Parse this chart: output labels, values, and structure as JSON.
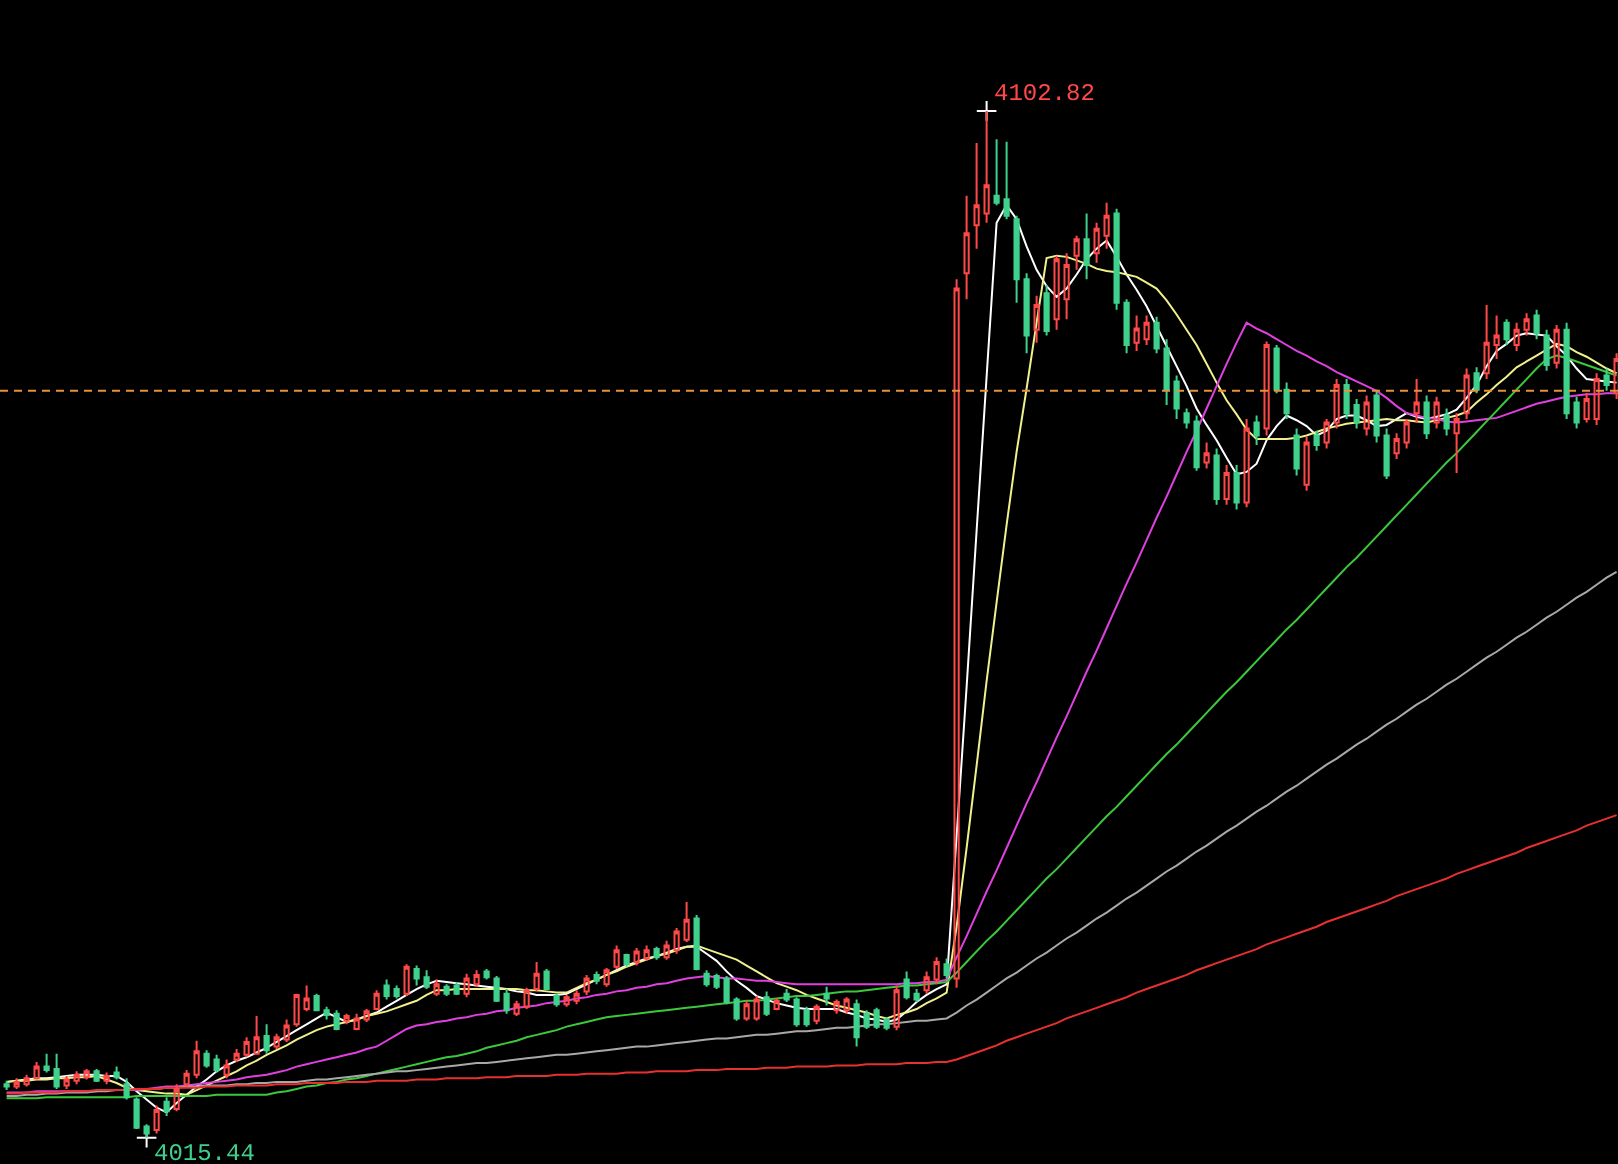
{
  "chart_data": {
    "type": "candlestick",
    "categories": [
      null,
      null,
      null,
      null,
      null,
      null,
      null,
      null,
      null,
      null,
      null,
      null,
      null,
      null,
      null,
      null,
      null,
      null,
      null,
      null,
      null,
      null,
      null,
      null,
      null,
      null,
      null,
      null,
      null,
      null,
      null,
      null,
      null,
      null,
      null,
      null,
      null,
      null,
      null,
      null,
      null,
      null,
      null,
      null,
      null,
      null,
      null,
      null,
      null,
      null,
      null,
      null,
      null,
      null,
      null,
      null,
      null,
      null,
      null,
      null,
      null,
      null,
      null,
      null,
      null,
      null,
      null,
      null,
      null,
      null,
      null,
      null,
      null,
      null,
      null,
      null,
      null,
      null,
      null,
      null,
      null,
      null,
      null,
      null,
      null,
      null,
      null,
      null,
      null,
      null,
      null,
      null,
      null,
      null,
      null,
      null,
      null,
      null,
      null,
      null,
      null,
      null,
      null,
      null,
      null,
      null,
      null,
      null,
      null,
      null,
      null,
      null,
      null,
      null,
      null,
      null,
      null,
      null,
      null,
      null,
      null,
      null,
      null,
      null,
      null,
      null,
      null,
      null,
      null,
      null,
      null,
      null,
      null,
      null,
      null,
      null,
      null,
      null,
      null,
      null,
      null,
      null,
      null,
      null,
      null,
      null,
      null,
      null,
      null,
      null,
      null,
      null,
      null,
      null,
      null,
      null,
      null,
      null,
      null,
      null,
      null,
      null
    ],
    "ohlc": [
      [
        4020.0,
        4020.3,
        4019.5,
        4019.8
      ],
      [
        4019.8,
        4020.5,
        4019.6,
        4020.2
      ],
      [
        4020.0,
        4020.8,
        4019.8,
        4020.5
      ],
      [
        4020.5,
        4021.9,
        4020.4,
        4021.5
      ],
      [
        4021.5,
        4022.6,
        4021.0,
        4021.2
      ],
      [
        4021.3,
        4022.6,
        4019.6,
        4019.8
      ],
      [
        4019.9,
        4020.7,
        4019.6,
        4020.4
      ],
      [
        4020.3,
        4021.1,
        4020.0,
        4020.8
      ],
      [
        4020.6,
        4021.3,
        4020.4,
        4021.1
      ],
      [
        4021.1,
        4021.3,
        4020.2,
        4020.3
      ],
      [
        4020.3,
        4021.0,
        4020.0,
        4020.7
      ],
      [
        4021.0,
        4021.5,
        4020.4,
        4020.6
      ],
      [
        4020.0,
        4020.5,
        4018.7,
        4018.9
      ],
      [
        4018.7,
        4018.9,
        4016.2,
        4016.3
      ],
      [
        4016.4,
        4016.6,
        4015.44,
        4015.8
      ],
      [
        4016.1,
        4018.2,
        4015.8,
        4017.8
      ],
      [
        4018.5,
        4018.9,
        4017.3,
        4017.7
      ],
      [
        4017.9,
        4020.0,
        4017.7,
        4019.6
      ],
      [
        4020.0,
        4021.2,
        4019.8,
        4020.9
      ],
      [
        4020.8,
        4023.7,
        4020.5,
        4022.8
      ],
      [
        4022.6,
        4022.9,
        4021.4,
        4021.6
      ],
      [
        4022.1,
        4022.5,
        4021.0,
        4021.2
      ],
      [
        4020.8,
        4022.1,
        4020.5,
        4021.6
      ],
      [
        4022.1,
        4023.0,
        4021.9,
        4022.6
      ],
      [
        4022.5,
        4024.0,
        4022.3,
        4023.6
      ],
      [
        4022.6,
        4025.8,
        4022.5,
        4024.0
      ],
      [
        4024.1,
        4025.1,
        4022.6,
        4022.9
      ],
      [
        4023.2,
        4024.3,
        4023.0,
        4024.0
      ],
      [
        4023.8,
        4025.5,
        4023.6,
        4025.0
      ],
      [
        4025.1,
        4027.7,
        4024.9,
        4027.6
      ],
      [
        4026.4,
        4028.4,
        4026.2,
        4027.3
      ],
      [
        4027.5,
        4027.7,
        4026.2,
        4026.3
      ],
      [
        4026.3,
        4026.6,
        4025.5,
        4025.9
      ],
      [
        4026.0,
        4026.3,
        4024.6,
        4024.7
      ],
      [
        4025.4,
        4026.0,
        4025.1,
        4025.8
      ],
      [
        4024.7,
        4026.0,
        4024.6,
        4025.6
      ],
      [
        4025.5,
        4026.4,
        4025.3,
        4026.2
      ],
      [
        4026.4,
        4028.0,
        4026.3,
        4027.7
      ],
      [
        4028.4,
        4028.9,
        4027.2,
        4027.5
      ],
      [
        4028.1,
        4028.4,
        4027.3,
        4027.5
      ],
      [
        4027.7,
        4030.2,
        4027.5,
        4030.0
      ],
      [
        4029.8,
        4030.1,
        4028.4,
        4029.0
      ],
      [
        4029.1,
        4029.7,
        4028.1,
        4028.3
      ],
      [
        4027.7,
        4028.9,
        4027.5,
        4028.5
      ],
      [
        4028.3,
        4028.5,
        4027.5,
        4027.7
      ],
      [
        4028.4,
        4028.7,
        4027.6,
        4027.7
      ],
      [
        4027.7,
        4029.4,
        4027.4,
        4029.0
      ],
      [
        4028.5,
        4029.7,
        4028.3,
        4029.3
      ],
      [
        4029.6,
        4029.8,
        4028.9,
        4029.1
      ],
      [
        4029.0,
        4029.2,
        4027.0,
        4027.1
      ],
      [
        4027.7,
        4028.1,
        4026.0,
        4026.3
      ],
      [
        4026.0,
        4027.1,
        4025.8,
        4026.8
      ],
      [
        4026.6,
        4028.2,
        4026.4,
        4028.0
      ],
      [
        4028.1,
        4030.4,
        4027.9,
        4029.4
      ],
      [
        4029.6,
        4029.8,
        4028.0,
        4028.1
      ],
      [
        4027.5,
        4027.7,
        4026.6,
        4026.8
      ],
      [
        4026.8,
        4027.6,
        4026.6,
        4027.4
      ],
      [
        4027.1,
        4028.0,
        4026.8,
        4027.7
      ],
      [
        4027.9,
        4029.3,
        4027.6,
        4029.0
      ],
      [
        4029.3,
        4029.6,
        4028.5,
        4028.8
      ],
      [
        4028.5,
        4029.9,
        4028.3,
        4029.7
      ],
      [
        4030.0,
        4031.8,
        4029.8,
        4031.4
      ],
      [
        4031.0,
        4031.1,
        4030.0,
        4030.2
      ],
      [
        4030.4,
        4031.6,
        4030.1,
        4031.3
      ],
      [
        4030.7,
        4031.8,
        4030.5,
        4031.4
      ],
      [
        4031.5,
        4031.7,
        4030.6,
        4030.8
      ],
      [
        4030.8,
        4032.2,
        4030.6,
        4031.8
      ],
      [
        4031.4,
        4033.3,
        4031.1,
        4033.0
      ],
      [
        4032.3,
        4035.5,
        4032.1,
        4034.0
      ],
      [
        4034.1,
        4034.4,
        4029.7,
        4029.8
      ],
      [
        4029.4,
        4029.7,
        4028.3,
        4028.5
      ],
      [
        4029.2,
        4029.4,
        4028.1,
        4028.3
      ],
      [
        4029.0,
        4029.2,
        4026.8,
        4027.0
      ],
      [
        4027.2,
        4027.4,
        4025.4,
        4025.6
      ],
      [
        4025.6,
        4027.1,
        4025.4,
        4026.8
      ],
      [
        4025.6,
        4027.5,
        4025.4,
        4027.2
      ],
      [
        4027.4,
        4027.9,
        4025.8,
        4026.0
      ],
      [
        4026.4,
        4027.3,
        4026.3,
        4027.1
      ],
      [
        4027.7,
        4028.1,
        4027.0,
        4027.2
      ],
      [
        4027.2,
        4027.4,
        4024.9,
        4025.1
      ],
      [
        4026.3,
        4026.6,
        4024.9,
        4025.1
      ],
      [
        4025.4,
        4026.8,
        4025.1,
        4026.6
      ],
      [
        4027.7,
        4028.3,
        4026.7,
        4027.3
      ],
      [
        4026.3,
        4027.2,
        4026.0,
        4027.0
      ],
      [
        4026.3,
        4027.4,
        4026.0,
        4027.2
      ],
      [
        4026.8,
        4027.2,
        4023.2,
        4024.0
      ],
      [
        4026.0,
        4026.3,
        4024.7,
        4024.9
      ],
      [
        4026.3,
        4026.5,
        4024.7,
        4024.9
      ],
      [
        4025.5,
        4025.7,
        4024.6,
        4024.8
      ],
      [
        4024.9,
        4028.4,
        4024.6,
        4028.0
      ],
      [
        4028.9,
        4029.6,
        4027.2,
        4027.4
      ],
      [
        4027.7,
        4028.1,
        4027.0,
        4027.2
      ],
      [
        4028.0,
        4029.6,
        4027.7,
        4029.1
      ],
      [
        4028.9,
        4030.8,
        4028.5,
        4030.4
      ],
      [
        4030.2,
        4030.7,
        4029.0,
        4029.3
      ],
      [
        4029.0,
        4088.5,
        4028.2,
        4087.7
      ],
      [
        4089.0,
        4095.6,
        4086.8,
        4092.4
      ],
      [
        4093.1,
        4100.1,
        4091.1,
        4094.8
      ],
      [
        4094.1,
        4102.82,
        4093.3,
        4096.5
      ],
      [
        4095.6,
        4100.4,
        4094.8,
        4095.0
      ],
      [
        4095.3,
        4100.2,
        4093.6,
        4093.9
      ],
      [
        4093.6,
        4093.9,
        4086.5,
        4088.5
      ],
      [
        4088.5,
        4089.0,
        4082.2,
        4083.7
      ],
      [
        4084.2,
        4087.1,
        4083.1,
        4086.3
      ],
      [
        4087.3,
        4088.0,
        4083.7,
        4084.1
      ],
      [
        4085.1,
        4090.5,
        4084.2,
        4090.2
      ],
      [
        4086.8,
        4090.7,
        4085.1,
        4089.7
      ],
      [
        4090.5,
        4092.2,
        4089.3,
        4091.9
      ],
      [
        4091.9,
        4094.1,
        4088.5,
        4089.7
      ],
      [
        4090.7,
        4093.3,
        4089.9,
        4092.8
      ],
      [
        4092.2,
        4095.0,
        4091.1,
        4093.9
      ],
      [
        4094.1,
        4094.5,
        4085.9,
        4086.5
      ],
      [
        4086.5,
        4086.8,
        4082.2,
        4082.9
      ],
      [
        4083.1,
        4085.4,
        4082.4,
        4084.3
      ],
      [
        4083.4,
        4085.4,
        4082.9,
        4084.8
      ],
      [
        4084.8,
        4085.3,
        4082.2,
        4082.6
      ],
      [
        4082.6,
        4083.4,
        4077.8,
        4079.1
      ],
      [
        4079.8,
        4080.3,
        4076.6,
        4077.5
      ],
      [
        4077.1,
        4077.5,
        4075.8,
        4076.3
      ],
      [
        4076.4,
        4076.9,
        4072.2,
        4072.5
      ],
      [
        4072.9,
        4074.6,
        4072.4,
        4073.7
      ],
      [
        4073.5,
        4074.1,
        4069.3,
        4069.8
      ],
      [
        4069.8,
        4072.7,
        4069.3,
        4072.0
      ],
      [
        4072.0,
        4072.7,
        4068.9,
        4069.5
      ],
      [
        4069.5,
        4076.6,
        4069.1,
        4075.8
      ],
      [
        4076.3,
        4076.9,
        4074.4,
        4075.2
      ],
      [
        4075.8,
        4083.2,
        4075.2,
        4082.9
      ],
      [
        4082.6,
        4082.9,
        4078.8,
        4079.1
      ],
      [
        4079.1,
        4079.7,
        4076.6,
        4077.1
      ],
      [
        4075.2,
        4075.8,
        4071.8,
        4072.4
      ],
      [
        4071.0,
        4075.1,
        4070.5,
        4074.6
      ],
      [
        4075.2,
        4075.6,
        4073.9,
        4074.4
      ],
      [
        4074.6,
        4076.6,
        4074.1,
        4076.3
      ],
      [
        4076.3,
        4080.0,
        4075.8,
        4079.5
      ],
      [
        4079.5,
        4080.0,
        4076.6,
        4077.1
      ],
      [
        4077.8,
        4078.3,
        4075.8,
        4076.3
      ],
      [
        4075.8,
        4078.6,
        4075.2,
        4078.0
      ],
      [
        4078.6,
        4079.1,
        4074.6,
        4075.2
      ],
      [
        4075.2,
        4075.8,
        4071.5,
        4071.8
      ],
      [
        4073.7,
        4075.4,
        4073.2,
        4074.9
      ],
      [
        4074.6,
        4076.6,
        4074.1,
        4076.3
      ],
      [
        4077.1,
        4080.0,
        4076.3,
        4078.0
      ],
      [
        4078.0,
        4078.6,
        4074.9,
        4075.4
      ],
      [
        4076.3,
        4078.5,
        4075.8,
        4078.0
      ],
      [
        4076.9,
        4077.5,
        4075.2,
        4075.8
      ],
      [
        4075.4,
        4077.1,
        4072.0,
        4076.6
      ],
      [
        4077.1,
        4080.9,
        4076.6,
        4080.3
      ],
      [
        4080.5,
        4081.0,
        4078.8,
        4079.1
      ],
      [
        4080.5,
        4086.3,
        4080.0,
        4083.1
      ],
      [
        4082.9,
        4085.4,
        4081.7,
        4083.7
      ],
      [
        4084.8,
        4085.1,
        4082.9,
        4083.4
      ],
      [
        4082.9,
        4084.8,
        4082.4,
        4084.2
      ],
      [
        4084.2,
        4085.6,
        4083.7,
        4085.1
      ],
      [
        4085.4,
        4085.9,
        4083.4,
        4083.9
      ],
      [
        4083.7,
        4084.2,
        4080.7,
        4081.2
      ],
      [
        4081.4,
        4084.6,
        4080.9,
        4084.2
      ],
      [
        4084.2,
        4084.8,
        4076.6,
        4077.1
      ],
      [
        4078.0,
        4078.5,
        4075.8,
        4076.3
      ],
      [
        4076.6,
        4078.8,
        4076.3,
        4078.3
      ],
      [
        4076.6,
        4080.5,
        4076.1,
        4080.0
      ],
      [
        4080.3,
        4080.9,
        4079.0,
        4079.5
      ],
      [
        4078.8,
        4082.2,
        4078.3,
        4081.7
      ]
    ],
    "colors": [
      "#3fd08c",
      "#ff4848",
      "#ff4848",
      "#ff4848",
      "#3fd08c",
      "#3fd08c",
      "#ff4848",
      "#ff4848",
      "#ff4848",
      "#3fd08c",
      "#ff4848",
      "#3fd08c",
      "#3fd08c",
      "#3fd08c",
      "#3fd08c",
      "#ff4848",
      "#3fd08c",
      "#ff4848",
      "#ff4848",
      "#ff4848",
      "#3fd08c",
      "#3fd08c",
      "#ff4848",
      "#ff4848",
      "#ff4848",
      "#ff4848",
      "#3fd08c",
      "#ff4848",
      "#ff4848",
      "#ff4848",
      "#ff4848",
      "#3fd08c",
      "#3fd08c",
      "#3fd08c",
      "#ff4848",
      "#ff4848",
      "#ff4848",
      "#ff4848",
      "#3fd08c",
      "#3fd08c",
      "#ff4848",
      "#3fd08c",
      "#3fd08c",
      "#ff4848",
      "#3fd08c",
      "#3fd08c",
      "#ff4848",
      "#ff4848",
      "#3fd08c",
      "#3fd08c",
      "#3fd08c",
      "#ff4848",
      "#ff4848",
      "#ff4848",
      "#3fd08c",
      "#3fd08c",
      "#ff4848",
      "#ff4848",
      "#ff4848",
      "#3fd08c",
      "#ff4848",
      "#ff4848",
      "#3fd08c",
      "#ff4848",
      "#ff4848",
      "#3fd08c",
      "#ff4848",
      "#ff4848",
      "#ff4848",
      "#3fd08c",
      "#3fd08c",
      "#3fd08c",
      "#3fd08c",
      "#3fd08c",
      "#ff4848",
      "#ff4848",
      "#3fd08c",
      "#ff4848",
      "#3fd08c",
      "#3fd08c",
      "#3fd08c",
      "#ff4848",
      "#3fd08c",
      "#ff4848",
      "#ff4848",
      "#3fd08c",
      "#3fd08c",
      "#3fd08c",
      "#3fd08c",
      "#ff4848",
      "#3fd08c",
      "#3fd08c",
      "#ff4848",
      "#ff4848",
      "#3fd08c",
      "#ff4848",
      "#ff4848",
      "#ff4848",
      "#ff4848",
      "#3fd08c",
      "#3fd08c",
      "#3fd08c",
      "#3fd08c",
      "#ff4848",
      "#3fd08c",
      "#ff4848",
      "#ff4848",
      "#ff4848",
      "#3fd08c",
      "#ff4848",
      "#ff4848",
      "#3fd08c",
      "#3fd08c",
      "#ff4848",
      "#ff4848",
      "#3fd08c",
      "#3fd08c",
      "#3fd08c",
      "#3fd08c",
      "#3fd08c",
      "#ff4848",
      "#3fd08c",
      "#ff4848",
      "#3fd08c",
      "#ff4848",
      "#3fd08c",
      "#ff4848",
      "#3fd08c",
      "#3fd08c",
      "#3fd08c",
      "#ff4848",
      "#3fd08c",
      "#ff4848",
      "#ff4848",
      "#3fd08c",
      "#3fd08c",
      "#ff4848",
      "#3fd08c",
      "#3fd08c",
      "#ff4848",
      "#ff4848",
      "#ff4848",
      "#3fd08c",
      "#ff4848",
      "#3fd08c",
      "#ff4848",
      "#ff4848",
      "#3fd08c",
      "#ff4848",
      "#ff4848",
      "#3fd08c",
      "#ff4848",
      "#ff4848",
      "#3fd08c",
      "#3fd08c",
      "#ff4848",
      "#3fd08c",
      "#3fd08c",
      "#ff4848",
      "#ff4848",
      "#3fd08c",
      "#ff4848"
    ],
    "series": [
      {
        "type": "line",
        "color": "#ffffff",
        "values": [
          4020.2,
          4020.3,
          4020.4,
          4020.5,
          4020.5,
          4020.6,
          4020.7,
          4020.8,
          4020.8,
          4020.8,
          4020.7,
          4020.7,
          4020.2,
          4019.4,
          4018.7,
          4018.0,
          4017.6,
          4018.4,
          4019.1,
          4019.8,
          4020.4,
          4021.1,
          4021.6,
          4022.0,
          4022.3,
          4022.7,
          4023.1,
          4023.6,
          4024.1,
          4024.6,
          4025.1,
          4025.6,
          4026.1,
          4025.7,
          4025.3,
          4025.5,
          4025.8,
          4026.1,
          4026.6,
          4027.1,
          4027.6,
          4028.1,
          4028.5,
          4028.8,
          4028.7,
          4028.6,
          4028.5,
          4028.4,
          4028.3,
          4028.2,
          4028.1,
          4027.9,
          4027.8,
          4027.6,
          4027.6,
          4027.6,
          4027.7,
          4028.1,
          4028.5,
          4028.9,
          4029.3,
          4029.7,
          4030.1,
          4030.4,
          4030.7,
          4030.9,
          4031.2,
          4031.5,
          4031.7,
          4031.7,
          4031.1,
          4030.5,
          4029.6,
          4028.8,
          4028.2,
          4027.5,
          4027.2,
          4026.9,
          4026.7,
          4026.5,
          4026.4,
          4026.4,
          4026.4,
          4026.4,
          4026.1,
          4025.9,
          4025.6,
          4025.5,
          4025.3,
          4025.5,
          4026.2,
          4027.0,
          4027.6,
          4028.1,
          4028.5,
          4041.1,
          4053.8,
          4067.1,
          4080.2,
          4093.3,
          4094.8,
          4093.6,
          4091.3,
          4089.3,
          4087.9,
          4087.0,
          4087.7,
          4088.9,
          4090.2,
          4091.1,
          4091.8,
          4090.4,
          4088.9,
          4087.6,
          4086.2,
          4084.5,
          4082.8,
          4081.1,
          4079.4,
          4077.5,
          4076.1,
          4074.8,
          4073.3,
          4071.9,
          4072.1,
          4072.8,
          4074.8,
          4076.0,
          4076.9,
          4076.5,
          4076.0,
          4075.2,
          4075.6,
          4076.6,
          4076.9,
          4076.9,
          4076.5,
          4076.0,
          4076.1,
          4076.6,
          4077.1,
          4076.8,
          4076.6,
          4076.8,
          4077.0,
          4077.4,
          4078.4,
          4079.5,
          4081.1,
          4082.4,
          4083.0,
          4083.7,
          4083.9,
          4083.8,
          4083.7,
          4082.8,
          4082.0,
          4080.9,
          4080.0,
          4079.9,
          4079.8,
          4079.7
        ]
      },
      {
        "type": "line",
        "color": "#f0f08c",
        "values": [
          4020.2,
          4020.3,
          4020.3,
          4020.4,
          4020.4,
          4020.5,
          4020.5,
          4020.6,
          4020.6,
          4020.7,
          4020.4,
          4020.1,
          4019.7,
          4019.5,
          4019.4,
          4019.3,
          4019.2,
          4019.2,
          4019.1,
          4019.5,
          4019.9,
          4020.3,
          4020.7,
          4021.1,
          4021.6,
          4022.0,
          4022.5,
          4022.9,
          4023.3,
          4023.8,
          4024.2,
          4024.6,
          4024.9,
          4025.1,
          4025.3,
          4025.5,
          4025.8,
          4026.0,
          4026.2,
          4026.5,
          4026.8,
          4027.1,
          4027.6,
          4028.0,
          4028.0,
          4028.1,
          4028.1,
          4028.1,
          4028.1,
          4028.1,
          4028.1,
          4028.1,
          4028.0,
          4028.0,
          4027.9,
          4027.8,
          4027.8,
          4028.2,
          4028.6,
          4028.9,
          4029.3,
          4029.6,
          4030.0,
          4030.3,
          4030.6,
          4030.9,
          4031.1,
          4031.4,
          4031.7,
          4031.8,
          4031.5,
          4031.2,
          4030.9,
          4030.6,
          4030.1,
          4029.6,
          4029.1,
          4028.6,
          4028.3,
          4028.0,
          4027.6,
          4027.3,
          4027.0,
          4026.7,
          4026.5,
          4026.3,
          4026.1,
          4025.8,
          4025.6,
          4025.9,
          4026.1,
          4026.4,
          4026.9,
          4027.3,
          4027.8,
          4033.4,
          4040.1,
          4047.1,
          4054.3,
          4061.0,
          4067.6,
          4073.8,
          4079.2,
          4084.8,
          4090.3,
          4090.5,
          4090.4,
          4090.1,
          4089.8,
          4089.4,
          4089.2,
          4089.1,
          4088.9,
          4088.7,
          4088.2,
          4087.7,
          4086.7,
          4085.5,
          4084.2,
          4082.9,
          4081.3,
          4079.7,
          4078.2,
          4077.0,
          4075.7,
          4074.9,
          4074.9,
          4074.9,
          4074.9,
          4075.0,
          4075.2,
          4075.5,
          4075.8,
          4076.0,
          4076.2,
          4076.3,
          4076.4,
          4076.5,
          4076.6,
          4076.5,
          4076.5,
          4076.4,
          4076.3,
          4076.5,
          4076.7,
          4076.9,
          4077.2,
          4078.0,
          4078.7,
          4079.5,
          4080.2,
          4081.0,
          4081.5,
          4082.0,
          4082.5,
          4083.0,
          4082.8,
          4082.3,
          4081.9,
          4081.4,
          4080.9,
          4080.5
        ]
      },
      {
        "type": "line",
        "color": "#e040e0",
        "values": [
          4019.3,
          4019.3,
          4019.3,
          4019.4,
          4019.4,
          4019.4,
          4019.4,
          4019.4,
          4019.4,
          4019.4,
          4019.5,
          4019.5,
          4019.5,
          4019.5,
          4019.6,
          4019.7,
          4019.8,
          4019.8,
          4019.9,
          4020.0,
          4020.1,
          4020.2,
          4020.3,
          4020.4,
          4020.6,
          4020.7,
          4020.8,
          4021.0,
          4021.2,
          4021.5,
          4021.7,
          4021.9,
          4022.1,
          4022.3,
          4022.5,
          4022.7,
          4023.0,
          4023.2,
          4023.7,
          4024.2,
          4024.7,
          4025.0,
          4025.1,
          4025.3,
          4025.4,
          4025.6,
          4025.7,
          4025.9,
          4026.0,
          4026.2,
          4026.3,
          4026.5,
          4026.6,
          4026.7,
          4026.9,
          4027.0,
          4027.1,
          4027.3,
          4027.4,
          4027.6,
          4027.7,
          4027.9,
          4028.0,
          4028.2,
          4028.3,
          4028.5,
          4028.6,
          4028.8,
          4029.0,
          4029.1,
          4029.2,
          4029.1,
          4029.0,
          4029.0,
          4028.9,
          4028.8,
          4028.8,
          4028.7,
          4028.6,
          4028.5,
          4028.5,
          4028.5,
          4028.5,
          4028.5,
          4028.5,
          4028.5,
          4028.5,
          4028.5,
          4028.5,
          4028.5,
          4028.6,
          4028.6,
          4028.7,
          4028.7,
          4028.9,
          4030.8,
          4032.6,
          4034.5,
          4036.4,
          4038.2,
          4040.1,
          4042.0,
          4043.9,
          4045.7,
          4047.6,
          4049.5,
          4051.3,
          4053.2,
          4055.1,
          4056.9,
          4058.8,
          4060.7,
          4062.6,
          4064.4,
          4066.3,
          4068.2,
          4070.0,
          4071.9,
          4073.8,
          4075.6,
          4077.5,
          4079.4,
          4081.3,
          4083.1,
          4084.8,
          4084.3,
          4083.9,
          4083.4,
          4082.9,
          4082.4,
          4082.0,
          4081.5,
          4081.1,
          4080.6,
          4080.2,
          4079.8,
          4079.4,
          4079.0,
          4078.4,
          4077.7,
          4077.1,
          4076.9,
          4076.7,
          4076.6,
          4076.4,
          4076.3,
          4076.4,
          4076.5,
          4076.6,
          4076.7,
          4077.0,
          4077.3,
          4077.6,
          4077.9,
          4078.1,
          4078.3,
          4078.5,
          4078.6,
          4078.7,
          4078.7,
          4078.8,
          4078.8
        ]
      },
      {
        "type": "line",
        "color": "#3cc83c",
        "values": [
          4018.8,
          4018.8,
          4018.8,
          4018.8,
          4018.9,
          4018.9,
          4018.9,
          4018.9,
          4018.9,
          4018.9,
          4018.9,
          4018.9,
          4018.9,
          4019.0,
          4019.0,
          4019.0,
          4019.0,
          4019.0,
          4019.0,
          4019.0,
          4019.0,
          4019.1,
          4019.1,
          4019.1,
          4019.1,
          4019.1,
          4019.1,
          4019.3,
          4019.4,
          4019.6,
          4019.8,
          4019.9,
          4020.1,
          4020.2,
          4020.4,
          4020.5,
          4020.7,
          4020.9,
          4021.1,
          4021.3,
          4021.5,
          4021.7,
          4021.9,
          4022.1,
          4022.3,
          4022.4,
          4022.6,
          4022.8,
          4023.1,
          4023.3,
          4023.5,
          4023.7,
          4024.0,
          4024.2,
          4024.4,
          4024.6,
          4024.9,
          4025.1,
          4025.3,
          4025.5,
          4025.7,
          4025.8,
          4025.9,
          4026.0,
          4026.1,
          4026.2,
          4026.3,
          4026.4,
          4026.5,
          4026.6,
          4026.7,
          4026.8,
          4026.9,
          4027.0,
          4027.1,
          4027.1,
          4027.2,
          4027.3,
          4027.4,
          4027.5,
          4027.5,
          4027.6,
          4027.7,
          4027.8,
          4027.9,
          4027.9,
          4028.0,
          4028.1,
          4028.2,
          4028.3,
          4028.4,
          4028.4,
          4028.5,
          4028.6,
          4028.7,
          4029.5,
          4030.4,
          4031.3,
          4032.2,
          4033.0,
          4033.9,
          4034.8,
          4035.7,
          4036.6,
          4037.5,
          4038.3,
          4039.2,
          4040.1,
          4041.0,
          4041.9,
          4042.8,
          4043.6,
          4044.5,
          4045.4,
          4046.3,
          4047.2,
          4048.1,
          4048.9,
          4049.8,
          4050.7,
          4051.6,
          4052.5,
          4053.4,
          4054.2,
          4055.1,
          4056.0,
          4056.9,
          4057.8,
          4058.7,
          4059.5,
          4060.4,
          4061.3,
          4062.2,
          4063.1,
          4064.0,
          4064.8,
          4065.7,
          4066.6,
          4067.5,
          4068.4,
          4069.3,
          4070.2,
          4071.1,
          4072.0,
          4072.9,
          4073.7,
          4074.6,
          4075.5,
          4076.4,
          4077.3,
          4078.2,
          4079.1,
          4080.0,
          4080.9,
          4081.7,
          4082.0,
          4081.8,
          4081.5,
          4081.2,
          4080.9,
          4080.6,
          4080.3
        ]
      },
      {
        "type": "line",
        "color": "#a8a8a8",
        "values": [
          4019.0,
          4019.0,
          4019.1,
          4019.1,
          4019.2,
          4019.2,
          4019.3,
          4019.3,
          4019.3,
          4019.4,
          4019.4,
          4019.5,
          4019.5,
          4019.6,
          4019.6,
          4019.6,
          4019.7,
          4019.7,
          4019.8,
          4019.8,
          4019.9,
          4019.9,
          4019.9,
          4020.0,
          4020.0,
          4020.1,
          4020.1,
          4020.2,
          4020.2,
          4020.2,
          4020.3,
          4020.4,
          4020.4,
          4020.5,
          4020.6,
          4020.7,
          4020.8,
          4020.9,
          4021.0,
          4021.1,
          4021.1,
          4021.2,
          4021.3,
          4021.4,
          4021.5,
          4021.6,
          4021.7,
          4021.8,
          4021.8,
          4021.9,
          4022.0,
          4022.1,
          4022.2,
          4022.3,
          4022.4,
          4022.5,
          4022.5,
          4022.6,
          4022.7,
          4022.8,
          4022.9,
          4023.0,
          4023.1,
          4023.2,
          4023.2,
          4023.3,
          4023.4,
          4023.5,
          4023.6,
          4023.7,
          4023.8,
          4023.9,
          4023.9,
          4024.0,
          4024.1,
          4024.2,
          4024.2,
          4024.3,
          4024.4,
          4024.5,
          4024.5,
          4024.6,
          4024.7,
          4024.8,
          4024.8,
          4024.9,
          4025.0,
          4025.1,
          4025.1,
          4025.2,
          4025.3,
          4025.4,
          4025.4,
          4025.5,
          4025.6,
          4026.1,
          4026.7,
          4027.2,
          4027.8,
          4028.4,
          4029.0,
          4029.5,
          4030.1,
          4030.7,
          4031.2,
          4031.8,
          4032.4,
          4032.9,
          4033.5,
          4034.1,
          4034.6,
          4035.2,
          4035.8,
          4036.3,
          4036.9,
          4037.5,
          4038.1,
          4038.6,
          4039.2,
          4039.8,
          4040.3,
          4040.9,
          4041.5,
          4042.0,
          4042.6,
          4043.2,
          4043.7,
          4044.3,
          4044.9,
          4045.4,
          4046.0,
          4046.6,
          4047.2,
          4047.7,
          4048.3,
          4048.9,
          4049.4,
          4050.0,
          4050.6,
          4051.1,
          4051.7,
          4052.3,
          4052.8,
          4053.4,
          4054.0,
          4054.5,
          4055.1,
          4055.7,
          4056.3,
          4056.8,
          4057.4,
          4058.0,
          4058.5,
          4059.1,
          4059.7,
          4060.2,
          4060.8,
          4061.4,
          4061.9,
          4062.5,
          4063.1,
          4063.6
        ]
      },
      {
        "type": "line",
        "color": "#e83030",
        "values": [
          4019.2,
          4019.2,
          4019.3,
          4019.3,
          4019.3,
          4019.3,
          4019.4,
          4019.4,
          4019.4,
          4019.5,
          4019.5,
          4019.5,
          4019.5,
          4019.6,
          4019.6,
          4019.6,
          4019.7,
          4019.7,
          4019.7,
          4019.7,
          4019.8,
          4019.8,
          4019.8,
          4019.9,
          4019.9,
          4019.9,
          4019.9,
          4020.0,
          4020.0,
          4020.0,
          4020.1,
          4020.1,
          4020.1,
          4020.1,
          4020.2,
          4020.2,
          4020.2,
          4020.3,
          4020.3,
          4020.3,
          4020.3,
          4020.4,
          4020.4,
          4020.4,
          4020.5,
          4020.5,
          4020.5,
          4020.5,
          4020.6,
          4020.6,
          4020.6,
          4020.7,
          4020.7,
          4020.7,
          4020.7,
          4020.8,
          4020.8,
          4020.8,
          4020.9,
          4020.9,
          4020.9,
          4020.9,
          4021.0,
          4021.0,
          4021.0,
          4021.1,
          4021.1,
          4021.1,
          4021.1,
          4021.2,
          4021.2,
          4021.2,
          4021.3,
          4021.3,
          4021.3,
          4021.3,
          4021.4,
          4021.4,
          4021.4,
          4021.5,
          4021.5,
          4021.5,
          4021.5,
          4021.6,
          4021.6,
          4021.6,
          4021.7,
          4021.7,
          4021.7,
          4021.7,
          4021.8,
          4021.8,
          4021.8,
          4021.9,
          4021.9,
          4022.1,
          4022.4,
          4022.7,
          4023.0,
          4023.3,
          4023.7,
          4024.0,
          4024.3,
          4024.6,
          4024.9,
          4025.2,
          4025.6,
          4025.9,
          4026.2,
          4026.5,
          4026.8,
          4027.1,
          4027.4,
          4027.8,
          4028.1,
          4028.4,
          4028.7,
          4029.0,
          4029.3,
          4029.7,
          4030.0,
          4030.3,
          4030.6,
          4030.9,
          4031.2,
          4031.5,
          4031.9,
          4032.2,
          4032.5,
          4032.8,
          4033.1,
          4033.4,
          4033.8,
          4034.1,
          4034.4,
          4034.7,
          4035.0,
          4035.3,
          4035.6,
          4036.0,
          4036.3,
          4036.6,
          4036.9,
          4037.2,
          4037.5,
          4037.9,
          4038.2,
          4038.5,
          4038.8,
          4039.1,
          4039.4,
          4039.7,
          4040.1,
          4040.4,
          4040.7,
          4041.0,
          4041.3,
          4041.6,
          4042.0,
          4042.3,
          4042.6,
          4042.9
        ]
      }
    ],
    "ref_lines": [
      {
        "axis": "y",
        "value": 4079.0,
        "color": "#e8903c",
        "line_style": "dashed"
      }
    ],
    "annotations": [
      "4102.82",
      "4015.44"
    ],
    "tick_labels": false
  }
}
